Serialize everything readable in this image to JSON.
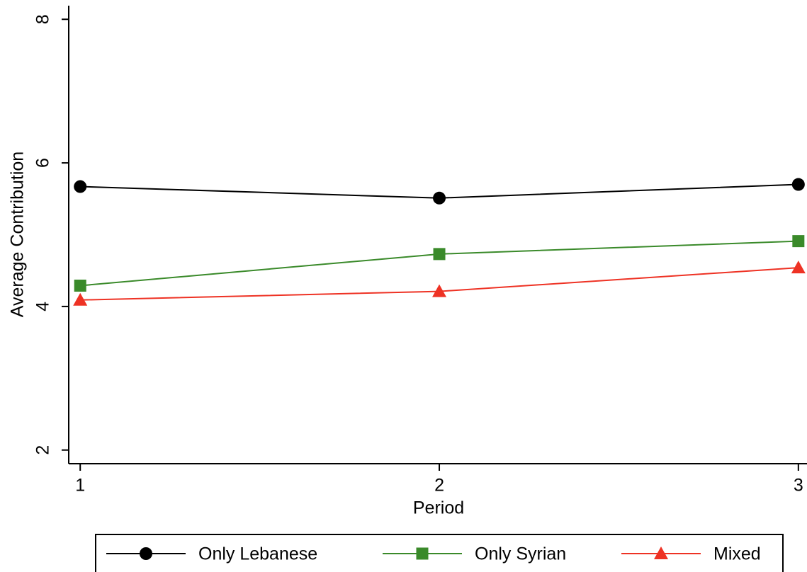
{
  "chart_data": {
    "type": "line",
    "x_label": "Period",
    "y_label": "Average Contribution",
    "x": [
      1,
      2,
      3
    ],
    "xlim": [
      0.968,
      3.024
    ],
    "xticks": [
      1,
      2,
      3
    ],
    "ylim": [
      1.81,
      8.19
    ],
    "yticks": [
      2,
      4,
      6,
      8
    ],
    "legend": "bottom",
    "series": [
      {
        "name": "Only Lebanese",
        "color": "#000000",
        "marker": "circle",
        "values": [
          5.67,
          5.51,
          5.7
        ]
      },
      {
        "name": "Only Syrian",
        "color": "#3a8a2a",
        "marker": "square",
        "values": [
          4.29,
          4.73,
          4.91
        ]
      },
      {
        "name": "Mixed",
        "color": "#ee3224",
        "marker": "triangle",
        "values": [
          4.09,
          4.21,
          4.54
        ]
      }
    ]
  }
}
